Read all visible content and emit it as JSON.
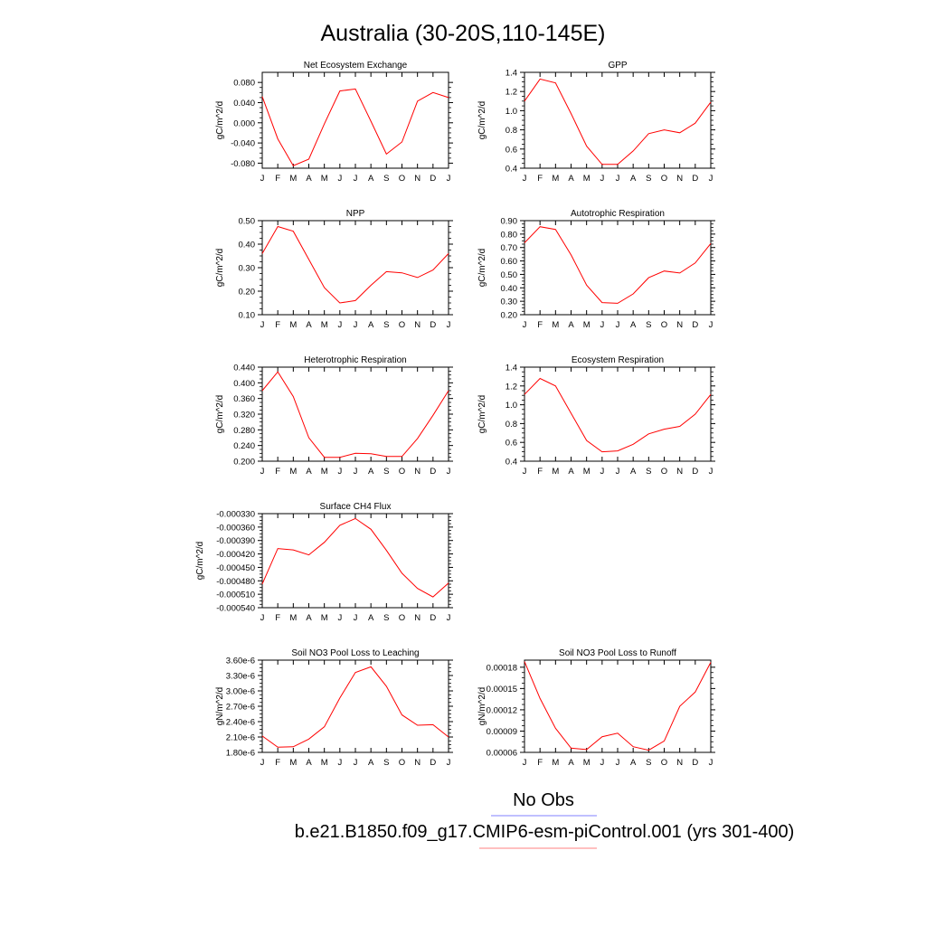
{
  "figure": {
    "title": "Australia (30-20S,110-145E)"
  },
  "legend": [
    {
      "label": "No Obs",
      "color": "#8080ff"
    },
    {
      "label": "b.e21.B1850.f09_g17.CMIP6-esm-piControl.001 (yrs 301-400)",
      "color": "#ff8080"
    }
  ],
  "series_color": "#ff0000",
  "chart_data": [
    {
      "type": "line",
      "title": "Net Ecosystem Exchange",
      "ylabel": "gC/m^2/d",
      "x": [
        "J",
        "F",
        "M",
        "A",
        "M",
        "J",
        "J",
        "A",
        "S",
        "O",
        "N",
        "D",
        "J"
      ],
      "ylim": [
        -0.09,
        0.1
      ],
      "yticks": [
        "0.080",
        "0.040",
        "0.000",
        "-0.040",
        "-0.080"
      ],
      "ytick_values": [
        0.08,
        0.04,
        0.0,
        -0.04,
        -0.08
      ],
      "series": [
        {
          "values": [
            0.052,
            -0.032,
            -0.085,
            -0.072,
            -0.002,
            0.063,
            0.067,
            0.003,
            -0.062,
            -0.038,
            0.043,
            0.06,
            0.05
          ]
        }
      ]
    },
    {
      "type": "line",
      "title": "GPP",
      "ylabel": "gC/m^2/d",
      "x": [
        "J",
        "F",
        "M",
        "A",
        "M",
        "J",
        "J",
        "A",
        "S",
        "O",
        "N",
        "D",
        "J"
      ],
      "ylim": [
        0.4,
        1.4
      ],
      "yticks": [
        "1.4",
        "1.2",
        "1.0",
        "0.8",
        "0.6",
        "0.4"
      ],
      "ytick_values": [
        1.4,
        1.2,
        1.0,
        0.8,
        0.6,
        0.4
      ],
      "series": [
        {
          "values": [
            1.1,
            1.33,
            1.29,
            0.97,
            0.63,
            0.44,
            0.44,
            0.58,
            0.76,
            0.8,
            0.77,
            0.87,
            1.09
          ]
        }
      ]
    },
    {
      "type": "line",
      "title": "NPP",
      "ylabel": "gC/m^2/d",
      "x": [
        "J",
        "F",
        "M",
        "A",
        "M",
        "J",
        "J",
        "A",
        "S",
        "O",
        "N",
        "D",
        "J"
      ],
      "ylim": [
        0.1,
        0.5
      ],
      "yticks": [
        "0.50",
        "0.40",
        "0.30",
        "0.20",
        "0.10"
      ],
      "ytick_values": [
        0.5,
        0.4,
        0.3,
        0.2,
        0.1
      ],
      "series": [
        {
          "values": [
            0.36,
            0.475,
            0.455,
            0.335,
            0.215,
            0.15,
            0.16,
            0.225,
            0.283,
            0.278,
            0.258,
            0.29,
            0.36
          ]
        }
      ]
    },
    {
      "type": "line",
      "title": "Autotrophic Respiration",
      "ylabel": "gC/m^2/d",
      "x": [
        "J",
        "F",
        "M",
        "A",
        "M",
        "J",
        "J",
        "A",
        "S",
        "O",
        "N",
        "D",
        "J"
      ],
      "ylim": [
        0.2,
        0.9
      ],
      "yticks": [
        "0.90",
        "0.80",
        "0.70",
        "0.60",
        "0.50",
        "0.40",
        "0.30",
        "0.20"
      ],
      "ytick_values": [
        0.9,
        0.8,
        0.7,
        0.6,
        0.5,
        0.4,
        0.3,
        0.2
      ],
      "series": [
        {
          "values": [
            0.735,
            0.855,
            0.835,
            0.645,
            0.42,
            0.29,
            0.285,
            0.355,
            0.475,
            0.525,
            0.51,
            0.585,
            0.73
          ]
        }
      ]
    },
    {
      "type": "line",
      "title": "Heterotrophic Respiration",
      "ylabel": "gC/m^2/d",
      "x": [
        "J",
        "F",
        "M",
        "A",
        "M",
        "J",
        "J",
        "A",
        "S",
        "O",
        "N",
        "D",
        "J"
      ],
      "ylim": [
        0.2,
        0.44
      ],
      "yticks": [
        "0.440",
        "0.400",
        "0.360",
        "0.320",
        "0.280",
        "0.240",
        "0.200"
      ],
      "ytick_values": [
        0.44,
        0.4,
        0.36,
        0.32,
        0.28,
        0.24,
        0.2
      ],
      "series": [
        {
          "values": [
            0.38,
            0.428,
            0.365,
            0.26,
            0.21,
            0.21,
            0.22,
            0.219,
            0.212,
            0.212,
            0.258,
            0.317,
            0.38
          ]
        }
      ]
    },
    {
      "type": "line",
      "title": "Ecosystem Respiration",
      "ylabel": "gC/m^2/d",
      "x": [
        "J",
        "F",
        "M",
        "A",
        "M",
        "J",
        "J",
        "A",
        "S",
        "O",
        "N",
        "D",
        "J"
      ],
      "ylim": [
        0.4,
        1.4
      ],
      "yticks": [
        "1.4",
        "1.2",
        "1.0",
        "0.8",
        "0.6",
        "0.4"
      ],
      "ytick_values": [
        1.4,
        1.2,
        1.0,
        0.8,
        0.6,
        0.4
      ],
      "series": [
        {
          "values": [
            1.11,
            1.28,
            1.2,
            0.91,
            0.62,
            0.5,
            0.51,
            0.58,
            0.69,
            0.74,
            0.77,
            0.9,
            1.11
          ]
        }
      ]
    },
    {
      "type": "line",
      "title": "Surface CH4 Flux",
      "ylabel": "gC/m^2/d",
      "x": [
        "J",
        "F",
        "M",
        "A",
        "M",
        "J",
        "J",
        "A",
        "S",
        "O",
        "N",
        "D",
        "J"
      ],
      "ylim": [
        -0.00054,
        -0.00033
      ],
      "yticks": [
        "-0.000330",
        "-0.000360",
        "-0.000390",
        "-0.000420",
        "-0.000450",
        "-0.000480",
        "-0.000510",
        "-0.000540"
      ],
      "ytick_values": [
        -0.00033,
        -0.00036,
        -0.00039,
        -0.00042,
        -0.00045,
        -0.00048,
        -0.00051,
        -0.00054
      ],
      "series": [
        {
          "values": [
            -0.000487,
            -0.000408,
            -0.000411,
            -0.000422,
            -0.000394,
            -0.000356,
            -0.000341,
            -0.000365,
            -0.000412,
            -0.000463,
            -0.000497,
            -0.000516,
            -0.000485
          ]
        }
      ]
    },
    {
      "type": "line",
      "title": "Soil NO3 Pool Loss to Leaching",
      "ylabel": "gN/m^2/d",
      "x": [
        "J",
        "F",
        "M",
        "A",
        "M",
        "J",
        "J",
        "A",
        "S",
        "O",
        "N",
        "D",
        "J"
      ],
      "ylim": [
        1.8e-06,
        3.6e-06
      ],
      "yticks": [
        "3.60e-6",
        "3.30e-6",
        "3.00e-6",
        "2.70e-6",
        "2.40e-6",
        "2.10e-6",
        "1.80e-6"
      ],
      "ytick_values": [
        3.6e-06,
        3.3e-06,
        3e-06,
        2.7e-06,
        2.4e-06,
        2.1e-06,
        1.8e-06
      ],
      "series": [
        {
          "values": [
            2.12e-06,
            1.9e-06,
            1.91e-06,
            2.06e-06,
            2.3e-06,
            2.86e-06,
            3.36e-06,
            3.47e-06,
            3.09e-06,
            2.53e-06,
            2.33e-06,
            2.34e-06,
            2.1e-06
          ]
        }
      ]
    },
    {
      "type": "line",
      "title": "Soil NO3 Pool Loss to Runoff",
      "ylabel": "gN/m^2/d",
      "x": [
        "J",
        "F",
        "M",
        "A",
        "M",
        "J",
        "J",
        "A",
        "S",
        "O",
        "N",
        "D",
        "J"
      ],
      "ylim": [
        6e-05,
        0.00019
      ],
      "yticks": [
        "0.00018",
        "0.00015",
        "0.00012",
        "0.00009",
        "0.00006"
      ],
      "ytick_values": [
        0.00018,
        0.00015,
        0.00012,
        9e-05,
        6e-05
      ],
      "series": [
        {
          "values": [
            0.000188,
            0.000136,
            9.4e-05,
            6.6e-05,
            6.4e-05,
            8.2e-05,
            8.7e-05,
            6.8e-05,
            6.3e-05,
            7.6e-05,
            0.000125,
            0.000145,
            0.000187
          ]
        }
      ]
    }
  ]
}
